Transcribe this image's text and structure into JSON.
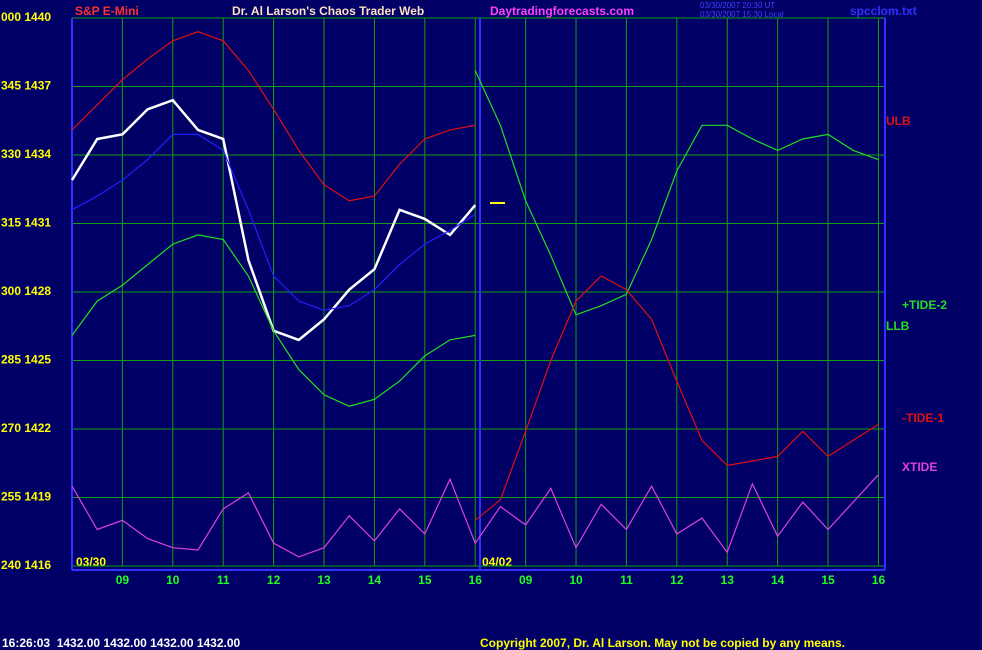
{
  "chart_data": {
    "type": "line",
    "title": "Dr. Al Larson's Chaos Trader Web",
    "symbol": "S&P E-Mini",
    "site": "Daytradingforecasts.com",
    "timestamps": [
      "03/30/2007 20:30 UT",
      "03/30/2007 15:30 Local"
    ],
    "file": "spcclom.txt",
    "days": [
      "03/30",
      "04/02"
    ],
    "status": "16:26:03  1432.00 1432.00 1432.00 1432.00",
    "copyright": "Copyright 2007, Dr. Al Larson. May not be copied by any means.",
    "x": [
      0,
      0.5,
      1,
      1.5,
      2,
      2.5,
      3,
      3.5,
      4,
      4.5,
      5,
      5.5,
      6,
      6.5,
      7,
      7.5,
      8,
      8.5,
      9,
      9.5,
      10,
      10.5,
      11,
      11.5,
      12,
      12.5,
      13,
      13.5,
      14,
      14.5,
      15,
      15.5,
      16
    ],
    "xlim": [
      0,
      16.13
    ],
    "xticks": [
      {
        "value": 1,
        "label": "09"
      },
      {
        "value": 2,
        "label": "10"
      },
      {
        "value": 3,
        "label": "11"
      },
      {
        "value": 4,
        "label": "12"
      },
      {
        "value": 5,
        "label": "13"
      },
      {
        "value": 6,
        "label": "14"
      },
      {
        "value": 7,
        "label": "15"
      },
      {
        "value": 8,
        "label": "16"
      },
      {
        "value": 9,
        "label": "09"
      },
      {
        "value": 10,
        "label": "10"
      },
      {
        "value": 11,
        "label": "11"
      },
      {
        "value": 12,
        "label": "12"
      },
      {
        "value": 13,
        "label": "13"
      },
      {
        "value": 14,
        "label": "14"
      },
      {
        "value": 15,
        "label": "15"
      },
      {
        "value": 16,
        "label": "16"
      }
    ],
    "ylim": [
      1416,
      1440
    ],
    "yticks": [
      {
        "value": 1440,
        "label": "000 1440"
      },
      {
        "value": 1437,
        "label": "345 1437"
      },
      {
        "value": 1434,
        "label": "330 1434"
      },
      {
        "value": 1431,
        "label": "315 1431"
      },
      {
        "value": 1428,
        "label": "300 1428"
      },
      {
        "value": 1425,
        "label": "285 1425"
      },
      {
        "value": 1422,
        "label": "270 1422"
      },
      {
        "value": 1419,
        "label": "255 1419"
      },
      {
        "value": 1416,
        "label": "240 1416"
      }
    ],
    "grid": true,
    "series": [
      {
        "color": "#ffffff",
        "values": [
          1432.9,
          1434.7,
          1434.9,
          1436.0,
          1436.4,
          1435.1,
          1434.7,
          1429.4,
          1426.3,
          1425.9,
          1426.8,
          1428.1,
          1429.0,
          1431.6,
          1431.2,
          1430.5,
          1431.8,
          null,
          null,
          null,
          null,
          null,
          null,
          null,
          null,
          null,
          null,
          null,
          null,
          null,
          null,
          null,
          null
        ]
      },
      {
        "color": "#2020ff",
        "values": [
          1431.6,
          1432.2,
          1432.9,
          1433.8,
          1434.9,
          1434.9,
          1434.2,
          1431.6,
          1428.7,
          1427.6,
          1427.2,
          1427.4,
          1428.1,
          1429.2,
          1430.1,
          1430.7,
          1431.4,
          null,
          null,
          null,
          null,
          null,
          null,
          null,
          null,
          null,
          null,
          null,
          null,
          null,
          null,
          null,
          null
        ]
      },
      {
        "name": "ULB",
        "color": "#e01010",
        "values": [
          1435.1,
          1436.2,
          1437.3,
          1438.2,
          1439.0,
          1439.4,
          1439.0,
          1437.7,
          1436.0,
          1434.2,
          1432.7,
          1432.0,
          1432.2,
          1433.6,
          1434.7,
          1435.1,
          1435.3,
          null,
          null,
          null,
          null,
          null,
          null,
          null,
          null,
          null,
          null,
          null,
          null,
          null,
          null,
          null,
          null
        ]
      },
      {
        "name": "+TIDE-2",
        "color": "#20e020",
        "values": [
          null,
          null,
          null,
          null,
          null,
          null,
          null,
          null,
          null,
          null,
          null,
          null,
          null,
          null,
          null,
          null,
          1437.7,
          1435.3,
          1432.0,
          1429.6,
          1427.0,
          1427.4,
          1427.9,
          1430.3,
          1433.3,
          1435.3,
          1435.3,
          1434.7,
          1434.2,
          1434.7,
          1434.9,
          1434.2,
          1433.8
        ]
      },
      {
        "name": "LLB",
        "color": "#20e020",
        "values": [
          1426.1,
          1427.6,
          1428.3,
          1429.2,
          1430.1,
          1430.5,
          1430.3,
          1428.7,
          1426.3,
          1424.6,
          1423.5,
          1423.0,
          1423.3,
          1424.1,
          1425.2,
          1425.9,
          1426.1,
          null,
          null,
          null,
          null,
          null,
          null,
          null,
          null,
          null,
          null,
          null,
          null,
          null,
          null,
          null,
          null
        ]
      },
      {
        "name": "-TIDE-1",
        "color": "#e01010",
        "values": [
          null,
          null,
          null,
          null,
          null,
          null,
          null,
          null,
          null,
          null,
          null,
          null,
          null,
          null,
          null,
          null,
          1418.0,
          1418.9,
          1421.9,
          1425.0,
          1427.6,
          1428.7,
          1428.1,
          1426.8,
          1424.1,
          1421.5,
          1420.4,
          1420.6,
          1420.8,
          1421.9,
          1420.8,
          1421.5,
          1422.2
        ]
      },
      {
        "name": "XTIDE",
        "color": "#e040e0",
        "values": [
          1419.5,
          1417.6,
          1418.0,
          1417.2,
          1416.8,
          1416.7,
          1418.5,
          1419.2,
          1417.0,
          1416.4,
          1416.8,
          1418.2,
          1417.1,
          1418.5,
          1417.4,
          1419.8,
          1417.0,
          1418.6,
          1417.8,
          1419.4,
          1416.8,
          1418.7,
          1417.6,
          1419.5,
          1417.4,
          1418.1,
          1416.6,
          1419.6,
          1417.3,
          1418.8,
          1417.6,
          1418.8,
          1420.0
        ]
      }
    ]
  }
}
